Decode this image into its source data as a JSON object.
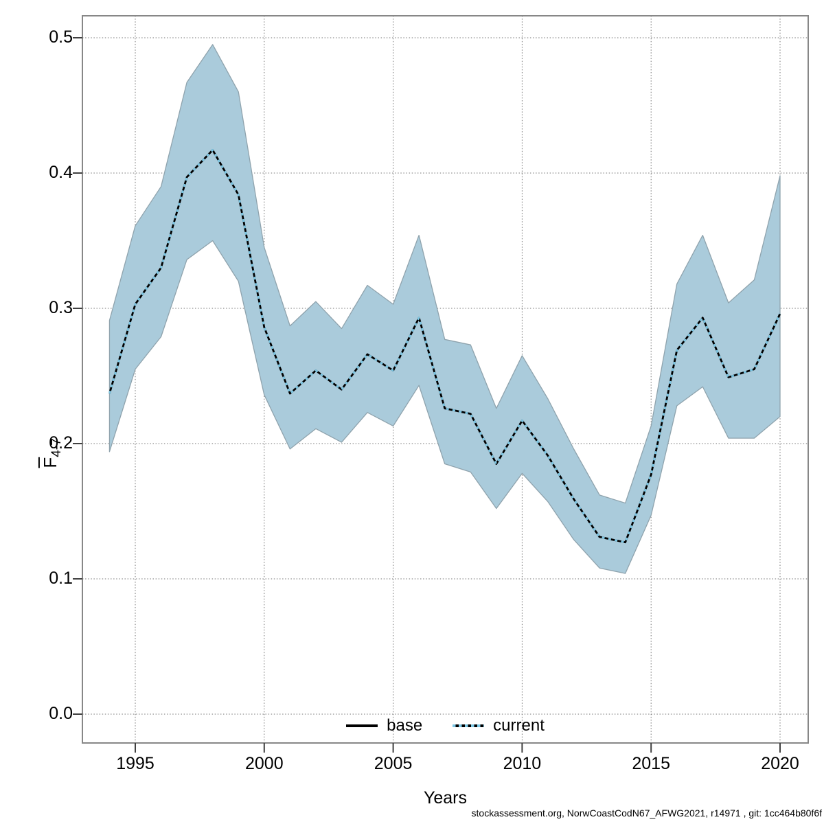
{
  "footer": {
    "text": "stockassessment.org, NorwCoastCodN67_AFWG2021, r14971 , git: 1cc464b80f6f"
  },
  "chart_data": {
    "type": "line",
    "title": "",
    "xlabel": "Years",
    "ylabel": {
      "base": "F",
      "overline": true,
      "subscript": "4-7"
    },
    "x_ticks": [
      1995,
      2000,
      2005,
      2010,
      2015,
      2020
    ],
    "y_ticks": [
      0.0,
      0.1,
      0.2,
      0.3,
      0.4,
      0.5
    ],
    "xlim": [
      1992.95,
      2021.09
    ],
    "ylim": [
      -0.021,
      0.516
    ],
    "grid": true,
    "legend": {
      "position": "bottom-center",
      "entries": [
        {
          "label": "base",
          "line_style": "solid",
          "color": "#000000"
        },
        {
          "label": "current",
          "line_style": "dotted",
          "color": "#7CC6E3"
        }
      ]
    },
    "years": [
      1994,
      1995,
      1996,
      1997,
      1998,
      1999,
      2000,
      2001,
      2002,
      2003,
      2004,
      2005,
      2006,
      2007,
      2008,
      2009,
      2010,
      2011,
      2012,
      2013,
      2014,
      2015,
      2016,
      2017,
      2018,
      2019,
      2020
    ],
    "series": [
      {
        "name": "base",
        "style": "solid",
        "color": "#000000",
        "values": [
          0.237,
          0.303,
          0.33,
          0.397,
          0.417,
          0.384,
          0.286,
          0.237,
          0.254,
          0.24,
          0.266,
          0.254,
          0.293,
          0.226,
          0.222,
          0.185,
          0.217,
          0.191,
          0.159,
          0.131,
          0.127,
          0.177,
          0.269,
          0.293,
          0.249,
          0.255,
          0.296
        ]
      },
      {
        "name": "current",
        "style": "dotted",
        "color": "#7CC6E3",
        "ci_fill": "#AACBDB",
        "values": [
          0.237,
          0.303,
          0.33,
          0.397,
          0.417,
          0.384,
          0.286,
          0.237,
          0.254,
          0.24,
          0.266,
          0.254,
          0.293,
          0.226,
          0.222,
          0.185,
          0.217,
          0.191,
          0.159,
          0.131,
          0.127,
          0.177,
          0.269,
          0.293,
          0.249,
          0.255,
          0.296
        ],
        "ci_lower": [
          0.194,
          0.255,
          0.279,
          0.336,
          0.35,
          0.32,
          0.236,
          0.196,
          0.211,
          0.201,
          0.223,
          0.213,
          0.243,
          0.185,
          0.179,
          0.152,
          0.178,
          0.157,
          0.129,
          0.108,
          0.104,
          0.147,
          0.228,
          0.242,
          0.204,
          0.204,
          0.22
        ],
        "ci_upper": [
          0.291,
          0.361,
          0.39,
          0.467,
          0.495,
          0.46,
          0.345,
          0.287,
          0.305,
          0.285,
          0.317,
          0.303,
          0.354,
          0.277,
          0.273,
          0.226,
          0.265,
          0.233,
          0.196,
          0.162,
          0.156,
          0.213,
          0.318,
          0.354,
          0.304,
          0.321,
          0.398
        ]
      }
    ]
  }
}
